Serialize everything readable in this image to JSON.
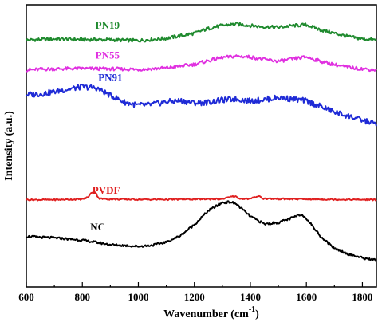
{
  "chart_data": {
    "type": "line",
    "title": "",
    "xlabel": "Wavenumber (cm",
    "xlabel_superscript": "-1",
    "xlabel_suffix": ")",
    "ylabel": "Intensity (a.u.)",
    "xlim": [
      600,
      1850
    ],
    "x_ticks": [
      "600",
      "800",
      "1000",
      "1200",
      "1400",
      "1600",
      "1800"
    ],
    "y_ticks_shown": false,
    "grid": false,
    "legend": "inline labels above each curve",
    "ylim": [
      0,
      1
    ],
    "series": [
      {
        "name": "PN19",
        "color": "#1f8a2e",
        "x": [
          600,
          700,
          800,
          900,
          1000,
          1100,
          1200,
          1250,
          1300,
          1350,
          1400,
          1450,
          1500,
          1550,
          1600,
          1650,
          1700,
          1750,
          1800,
          1850
        ],
        "y": [
          0.875,
          0.879,
          0.877,
          0.876,
          0.873,
          0.881,
          0.899,
          0.916,
          0.927,
          0.932,
          0.926,
          0.922,
          0.92,
          0.926,
          0.929,
          0.911,
          0.899,
          0.887,
          0.879,
          0.875
        ]
      },
      {
        "name": "PN55",
        "color": "#e030e0",
        "x": [
          600,
          700,
          800,
          900,
          1000,
          1100,
          1200,
          1250,
          1300,
          1350,
          1400,
          1450,
          1500,
          1550,
          1600,
          1650,
          1700,
          1750,
          1800,
          1850
        ],
        "y": [
          0.769,
          0.773,
          0.774,
          0.773,
          0.771,
          0.776,
          0.789,
          0.802,
          0.813,
          0.818,
          0.815,
          0.806,
          0.8,
          0.808,
          0.815,
          0.8,
          0.788,
          0.778,
          0.773,
          0.769
        ]
      },
      {
        "name": "PN91",
        "color": "#1f2bd6",
        "x": [
          600,
          650,
          700,
          750,
          800,
          850,
          900,
          950,
          1000,
          1050,
          1100,
          1150,
          1200,
          1250,
          1300,
          1350,
          1400,
          1450,
          1500,
          1550,
          1600,
          1650,
          1700,
          1750,
          1800,
          1850
        ],
        "y": [
          0.681,
          0.684,
          0.692,
          0.701,
          0.709,
          0.705,
          0.679,
          0.655,
          0.643,
          0.647,
          0.656,
          0.66,
          0.652,
          0.654,
          0.662,
          0.666,
          0.659,
          0.664,
          0.671,
          0.666,
          0.659,
          0.64,
          0.62,
          0.606,
          0.59,
          0.579
        ]
      },
      {
        "name": "PVDF",
        "color": "#e02020",
        "x": [
          600,
          700,
          800,
          820,
          835,
          845,
          860,
          900,
          1000,
          1100,
          1200,
          1300,
          1345,
          1360,
          1400,
          1430,
          1445,
          1500,
          1600,
          1700,
          1850
        ],
        "y": [
          0.309,
          0.309,
          0.311,
          0.318,
          0.336,
          0.337,
          0.313,
          0.311,
          0.31,
          0.31,
          0.311,
          0.312,
          0.322,
          0.313,
          0.312,
          0.323,
          0.313,
          0.312,
          0.311,
          0.31,
          0.309
        ]
      },
      {
        "name": "NC",
        "color": "#000000",
        "x": [
          600,
          700,
          800,
          900,
          1000,
          1050,
          1100,
          1150,
          1200,
          1250,
          1300,
          1330,
          1350,
          1400,
          1450,
          1500,
          1550,
          1580,
          1600,
          1650,
          1700,
          1750,
          1800,
          1850
        ],
        "y": [
          0.179,
          0.174,
          0.166,
          0.15,
          0.144,
          0.148,
          0.159,
          0.182,
          0.221,
          0.27,
          0.299,
          0.301,
          0.294,
          0.25,
          0.223,
          0.228,
          0.245,
          0.258,
          0.244,
          0.18,
          0.137,
          0.117,
          0.103,
          0.095
        ]
      }
    ]
  }
}
